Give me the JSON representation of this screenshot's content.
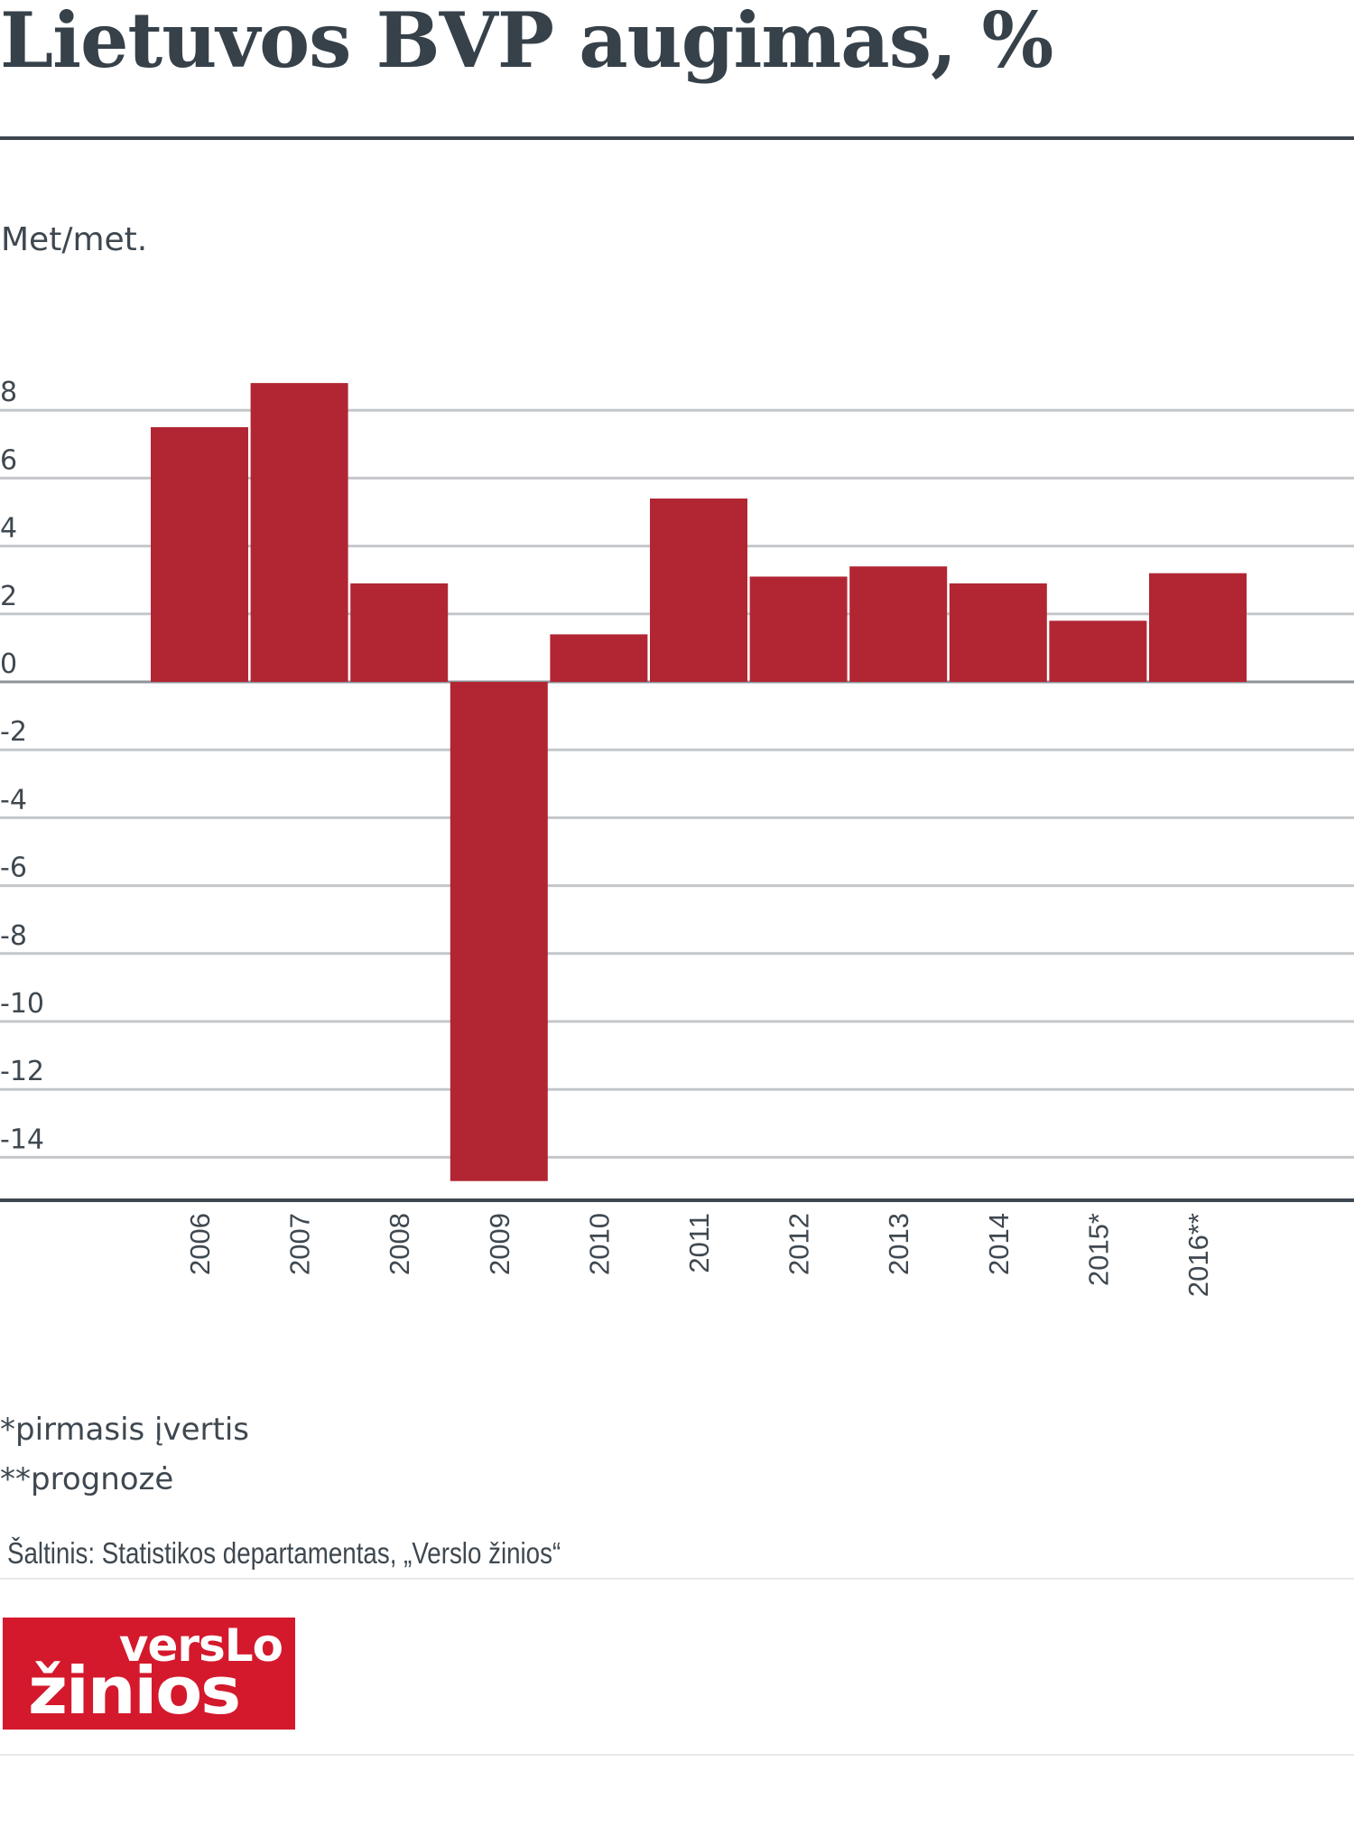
{
  "header": {
    "title": "Lietuvos BVP augimas, %",
    "unit_label": "Met/met."
  },
  "chart_data": {
    "type": "bar",
    "title": "Lietuvos BVP augimas, %",
    "ylabel": "Met/met.",
    "xlabel": "",
    "categories": [
      "2006",
      "2007",
      "2008",
      "2009",
      "2010",
      "2011",
      "2012",
      "2013",
      "2014",
      "2015*",
      "2016**"
    ],
    "values": [
      7.5,
      8.8,
      2.9,
      -14.7,
      1.4,
      5.4,
      3.1,
      3.4,
      2.9,
      1.8,
      3.2
    ],
    "ylim": [
      -15.5,
      8
    ],
    "yticks": [
      8,
      6,
      4,
      2,
      0,
      -2,
      -4,
      -6,
      -8,
      -10,
      -12,
      -14
    ],
    "ytick_labels": [
      "8",
      "6",
      "4",
      "2",
      "0",
      "-2",
      "-4",
      "-6",
      "-8",
      "-10",
      "-12",
      "-14"
    ],
    "grid": true,
    "legend": "none",
    "bar_color": "#b22633",
    "grid_color": "#c4c7ca",
    "axis_color": "#3d4750"
  },
  "footnotes": [
    "*pirmasis įvertis",
    "**prognozė"
  ],
  "source": "Šaltinis: Statistikos departamentas, „Verslo žinios“",
  "logo": {
    "top": "versLo",
    "bottom": "žinios",
    "color": "#d4192c"
  }
}
